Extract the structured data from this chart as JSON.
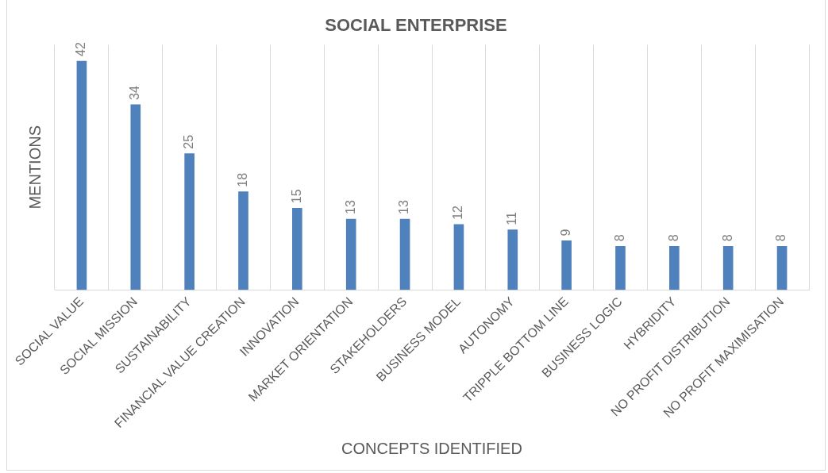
{
  "chart_data": {
    "type": "bar",
    "title": "SOCIAL ENTERPRISE",
    "xlabel": "CONCEPTS IDENTIFIED",
    "ylabel": "MENTIONS",
    "categories": [
      "SOCIAL VALUE",
      "SOCIAL MISSION",
      "SUSTAINABILITY",
      "FINANCIAL VALUE CREATION",
      "INNOVATION",
      "MARKET ORIENTATION",
      "STAKEHOLDERS",
      "BUSINESS MODEL",
      "AUTONOMY",
      "TRIPPLE BOTTOM LINE",
      "BUSINESS LOGIC",
      "HYBRIDITY",
      "NO PROFIT DISTRIBUTION",
      "NO PROFIT MAXIMISATION"
    ],
    "values": [
      42,
      34,
      25,
      18,
      15,
      13,
      13,
      12,
      11,
      9,
      8,
      8,
      8,
      8
    ],
    "color": "#4f81bd",
    "data_labels": true,
    "grid": "x",
    "legend": false,
    "tick_labels": "x"
  }
}
